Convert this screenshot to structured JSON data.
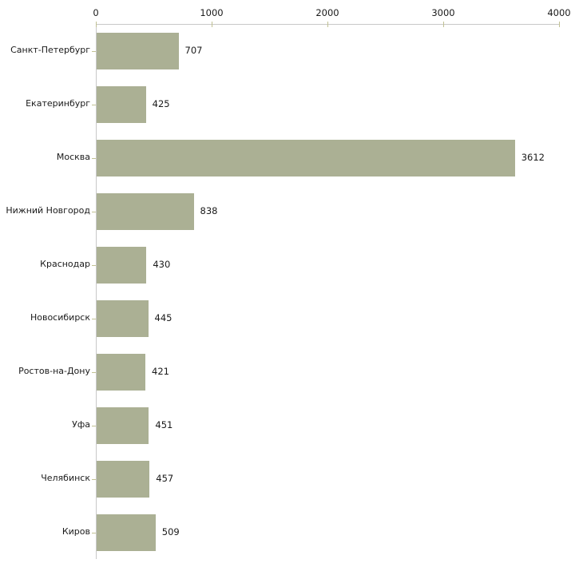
{
  "chart_data": {
    "type": "bar",
    "orientation": "horizontal",
    "categories": [
      "Санкт-Петербург",
      "Екатеринбург",
      "Москва",
      "Нижний Новгород",
      "Краснодар",
      "Новосибирск",
      "Ростов-на-Дону",
      "Уфа",
      "Челябинск",
      "Киров"
    ],
    "values": [
      707,
      425,
      3612,
      838,
      430,
      445,
      421,
      451,
      457,
      509
    ],
    "value_labels": [
      "707",
      "425",
      "3612",
      "838",
      "430",
      "445",
      "421",
      "451",
      "457",
      "509"
    ],
    "x_ticks": [
      0,
      1000,
      2000,
      3000,
      4000
    ],
    "x_tick_labels": [
      "0",
      "1000",
      "2000",
      "3000",
      "4000"
    ],
    "xlim": [
      0,
      4000
    ],
    "grid": false,
    "legend_position": "none",
    "axis_position": "top",
    "colors": {
      "bar": "#abb094",
      "axis_line": "#c8c8c8",
      "tick_mark": "#c1c193",
      "text": "#1a1a1a",
      "background": "#ffffff"
    }
  }
}
